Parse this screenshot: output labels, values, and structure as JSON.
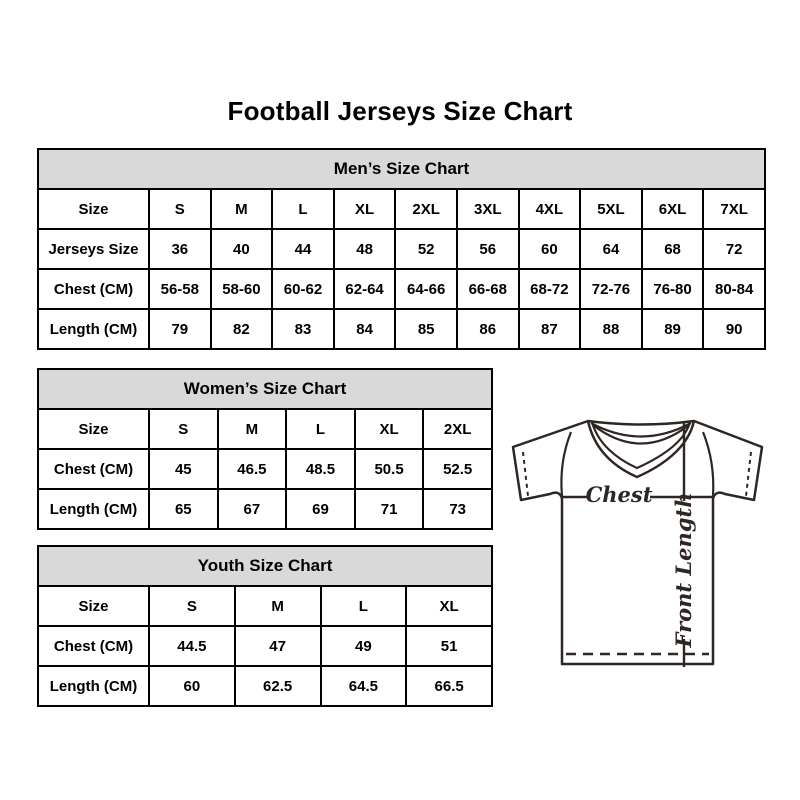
{
  "title": "Football Jerseys Size Chart",
  "tables": {
    "men": {
      "title": "Men’s Size Chart",
      "rows": [
        {
          "label": "Size",
          "values": [
            "S",
            "M",
            "L",
            "XL",
            "2XL",
            "3XL",
            "4XL",
            "5XL",
            "6XL",
            "7XL"
          ]
        },
        {
          "label": "Jerseys Size",
          "values": [
            "36",
            "40",
            "44",
            "48",
            "52",
            "56",
            "60",
            "64",
            "68",
            "72"
          ]
        },
        {
          "label": "Chest (CM)",
          "values": [
            "56-58",
            "58-60",
            "60-62",
            "62-64",
            "64-66",
            "66-68",
            "68-72",
            "72-76",
            "76-80",
            "80-84"
          ]
        },
        {
          "label": "Length (CM)",
          "values": [
            "79",
            "82",
            "83",
            "84",
            "85",
            "86",
            "87",
            "88",
            "89",
            "90"
          ]
        }
      ]
    },
    "women": {
      "title": "Women’s Size Chart",
      "rows": [
        {
          "label": "Size",
          "values": [
            "S",
            "M",
            "L",
            "XL",
            "2XL"
          ]
        },
        {
          "label": "Chest (CM)",
          "values": [
            "45",
            "46.5",
            "48.5",
            "50.5",
            "52.5"
          ]
        },
        {
          "label": "Length (CM)",
          "values": [
            "65",
            "67",
            "69",
            "71",
            "73"
          ]
        }
      ]
    },
    "youth": {
      "title": "Youth Size Chart",
      "rows": [
        {
          "label": "Size",
          "values": [
            "S",
            "M",
            "L",
            "XL"
          ]
        },
        {
          "label": "Chest (CM)",
          "values": [
            "44.5",
            "47",
            "49",
            "51"
          ]
        },
        {
          "label": "Length (CM)",
          "values": [
            "60",
            "62.5",
            "64.5",
            "66.5"
          ]
        }
      ]
    }
  },
  "diagram": {
    "chest_label": "Chest",
    "front_length_label": "Front Length"
  },
  "colors": {
    "table_header_bg": "#d9d9d9",
    "table_border": "#000000",
    "jersey_line": "#2e2623",
    "text": "#000000"
  }
}
